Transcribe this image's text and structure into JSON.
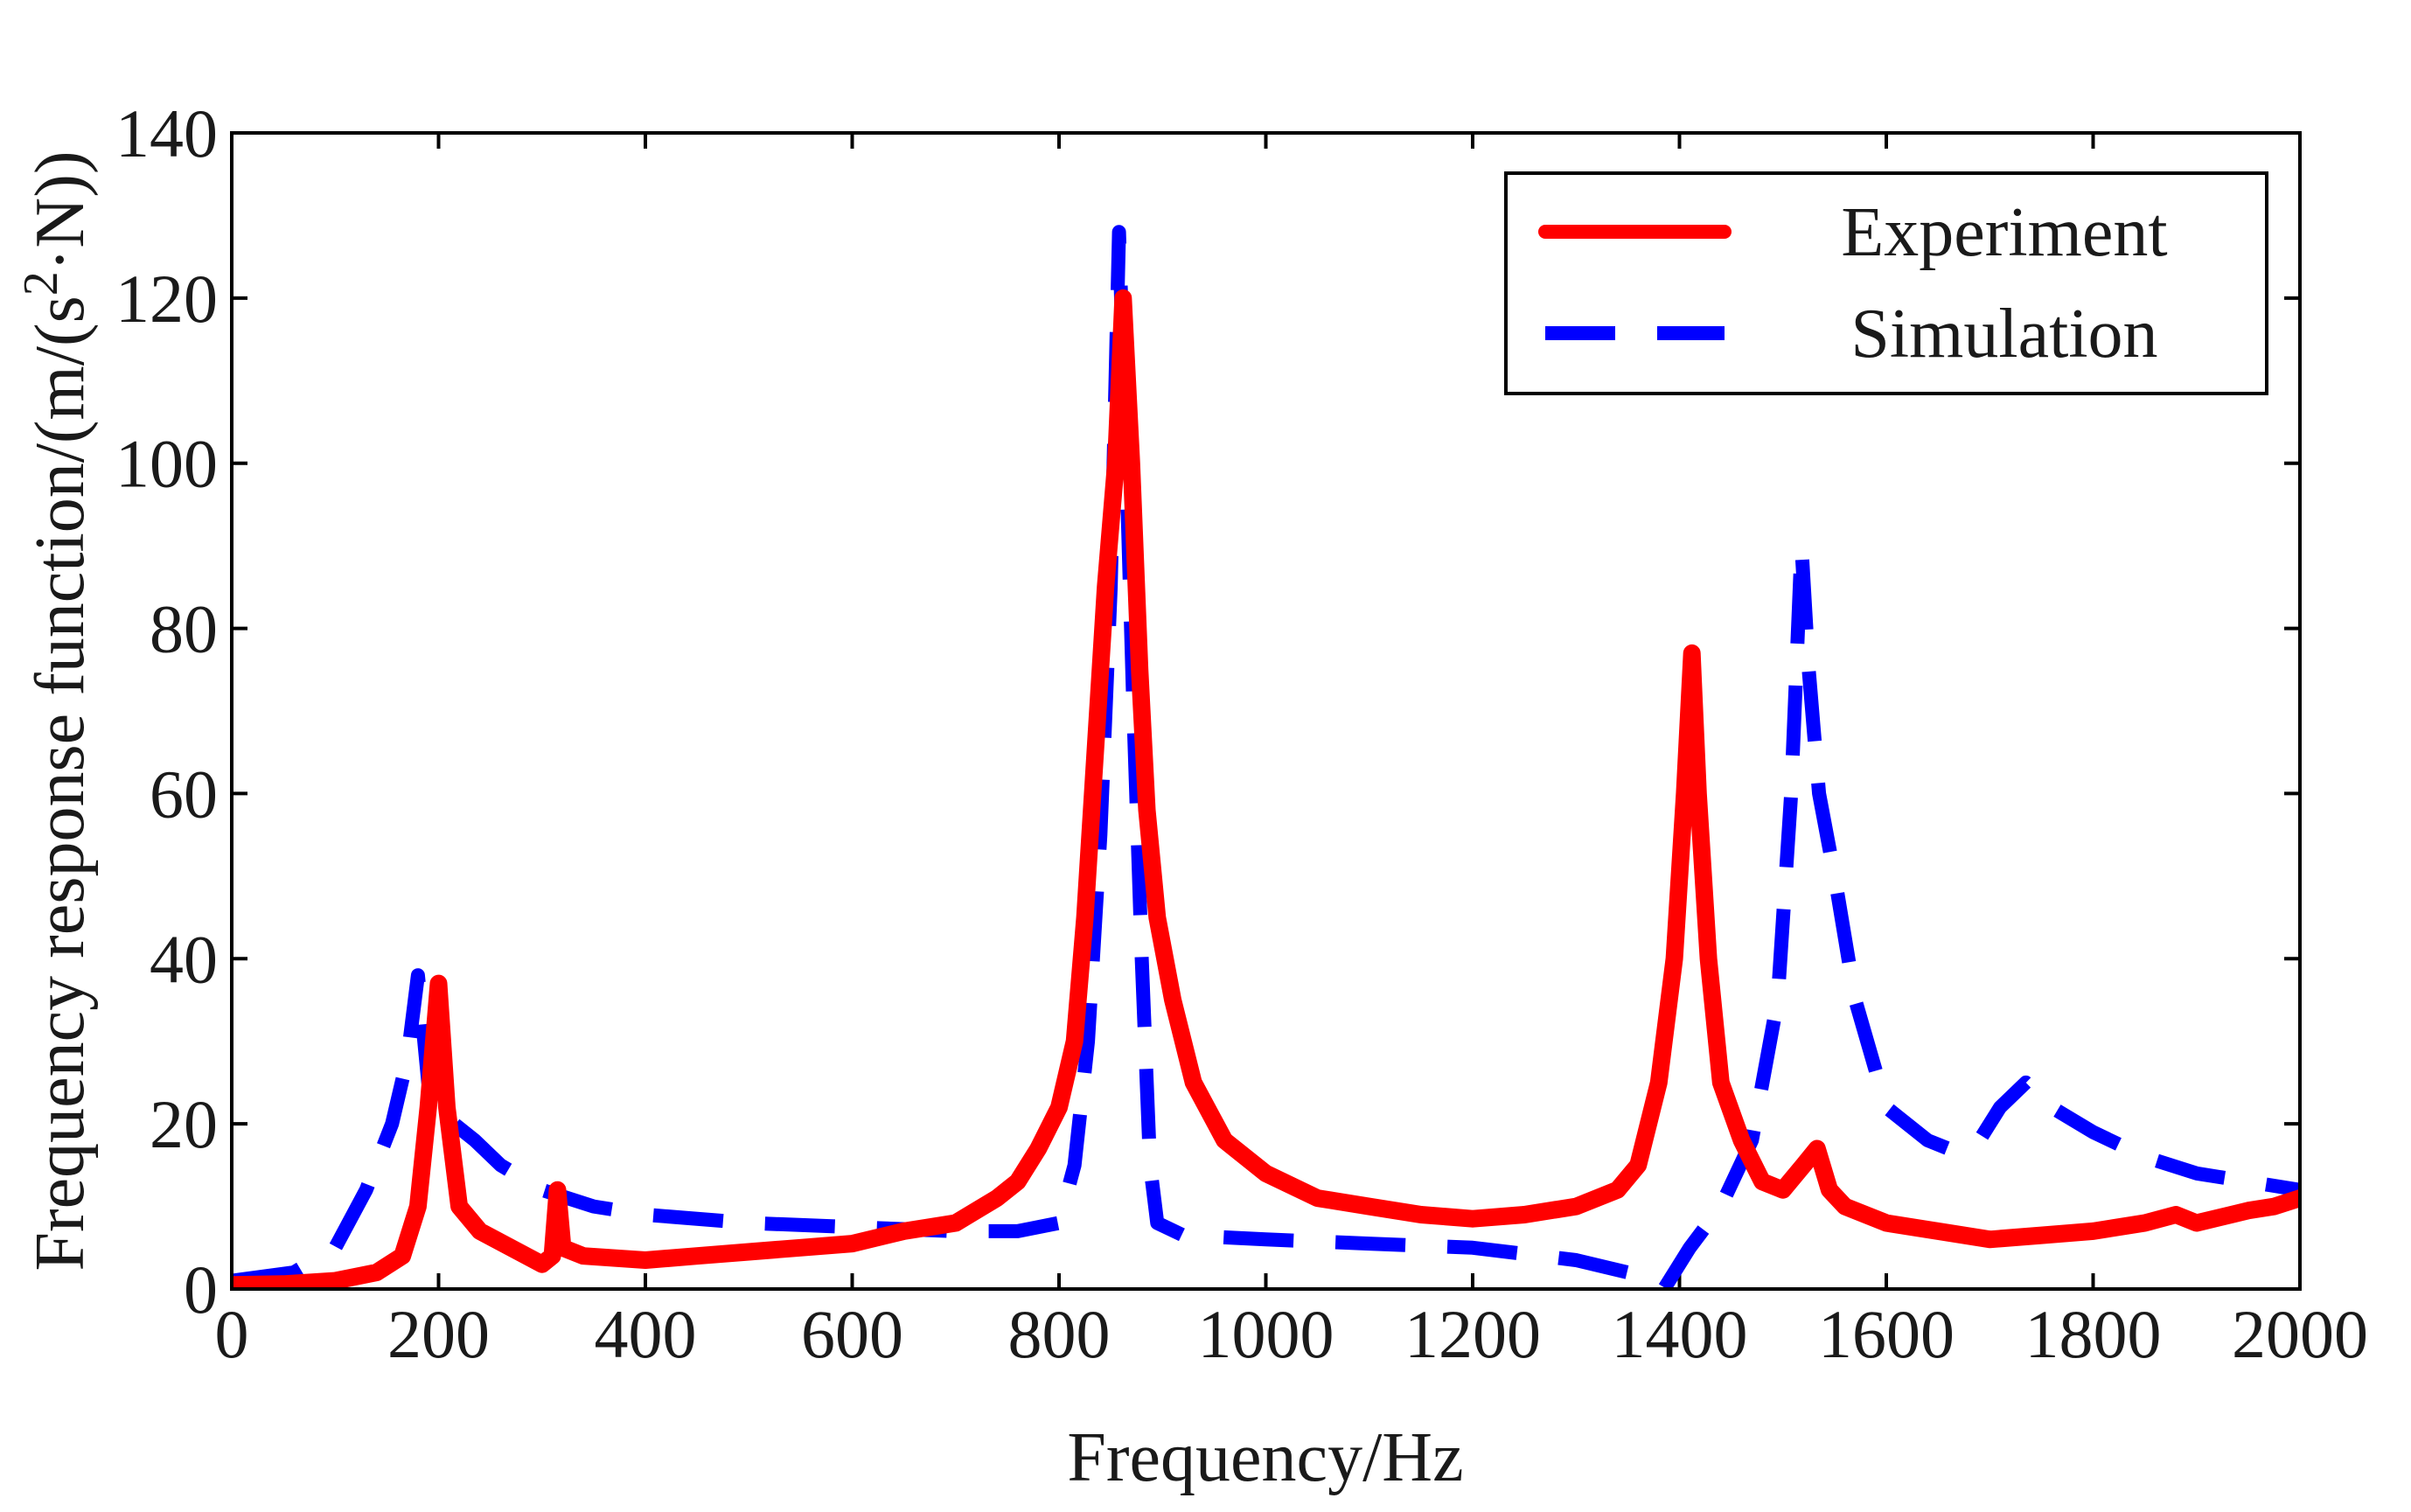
{
  "chart_data": {
    "type": "line",
    "title": "",
    "xlabel": "Frequency/Hz",
    "ylabel": "Frequency response function/(m/(s²·N))",
    "ylabel_parts": {
      "main": "Frequency response function/(m/(s",
      "sup": "2",
      "tail": "·N))"
    },
    "xlim": [
      0,
      2000
    ],
    "ylim": [
      0,
      140
    ],
    "x_ticks": [
      0,
      200,
      400,
      600,
      800,
      1000,
      1200,
      1400,
      1600,
      1800,
      2000
    ],
    "y_ticks": [
      0,
      20,
      40,
      60,
      80,
      100,
      120,
      140
    ],
    "x_tick_labels": [
      "0",
      "200",
      "400",
      "600",
      "800",
      "1000",
      "1200",
      "1400",
      "1600",
      "1800",
      "2000"
    ],
    "y_tick_labels": [
      "0",
      "20",
      "40",
      "60",
      "80",
      "100",
      "120",
      "140"
    ],
    "grid": false,
    "legend_position": "top-right",
    "series": [
      {
        "name": "Experiment",
        "color": "#ff0000",
        "style": "solid",
        "points": [
          [
            0,
            0.5
          ],
          [
            50,
            0.6
          ],
          [
            100,
            1
          ],
          [
            140,
            2
          ],
          [
            165,
            4
          ],
          [
            180,
            10
          ],
          [
            190,
            22
          ],
          [
            200,
            37
          ],
          [
            208,
            22
          ],
          [
            220,
            10
          ],
          [
            240,
            7
          ],
          [
            270,
            5
          ],
          [
            300,
            3
          ],
          [
            310,
            4
          ],
          [
            315,
            12
          ],
          [
            320,
            5
          ],
          [
            340,
            4
          ],
          [
            400,
            3.5
          ],
          [
            450,
            4
          ],
          [
            500,
            4.5
          ],
          [
            550,
            5
          ],
          [
            600,
            5.5
          ],
          [
            650,
            7
          ],
          [
            700,
            8
          ],
          [
            740,
            11
          ],
          [
            760,
            13
          ],
          [
            780,
            17
          ],
          [
            800,
            22
          ],
          [
            815,
            30
          ],
          [
            825,
            45
          ],
          [
            835,
            65
          ],
          [
            845,
            85
          ],
          [
            855,
            100
          ],
          [
            862,
            120
          ],
          [
            870,
            100
          ],
          [
            878,
            75
          ],
          [
            885,
            58
          ],
          [
            895,
            45
          ],
          [
            910,
            35
          ],
          [
            930,
            25
          ],
          [
            960,
            18
          ],
          [
            1000,
            14
          ],
          [
            1050,
            11
          ],
          [
            1100,
            10
          ],
          [
            1150,
            9
          ],
          [
            1200,
            8.5
          ],
          [
            1250,
            9
          ],
          [
            1300,
            10
          ],
          [
            1340,
            12
          ],
          [
            1360,
            15
          ],
          [
            1380,
            25
          ],
          [
            1395,
            40
          ],
          [
            1405,
            60
          ],
          [
            1412,
            77
          ],
          [
            1418,
            60
          ],
          [
            1428,
            40
          ],
          [
            1440,
            25
          ],
          [
            1460,
            18
          ],
          [
            1480,
            13
          ],
          [
            1500,
            12
          ],
          [
            1520,
            15
          ],
          [
            1533,
            17
          ],
          [
            1545,
            12
          ],
          [
            1560,
            10
          ],
          [
            1600,
            8
          ],
          [
            1650,
            7
          ],
          [
            1700,
            6
          ],
          [
            1750,
            6.5
          ],
          [
            1800,
            7
          ],
          [
            1850,
            8
          ],
          [
            1880,
            9
          ],
          [
            1900,
            8
          ],
          [
            1950,
            9.5
          ],
          [
            1975,
            10
          ],
          [
            2000,
            11
          ]
        ]
      },
      {
        "name": "Simulation",
        "color": "#0000ff",
        "style": "dashed",
        "points": [
          [
            0,
            1
          ],
          [
            60,
            2
          ],
          [
            100,
            5
          ],
          [
            130,
            12
          ],
          [
            155,
            20
          ],
          [
            170,
            28
          ],
          [
            180,
            38
          ],
          [
            190,
            25
          ],
          [
            200,
            21
          ],
          [
            215,
            20
          ],
          [
            235,
            18
          ],
          [
            260,
            15
          ],
          [
            300,
            12
          ],
          [
            350,
            10
          ],
          [
            400,
            9
          ],
          [
            500,
            8
          ],
          [
            600,
            7.5
          ],
          [
            700,
            7
          ],
          [
            760,
            7
          ],
          [
            800,
            8
          ],
          [
            815,
            15
          ],
          [
            828,
            30
          ],
          [
            840,
            55
          ],
          [
            850,
            85
          ],
          [
            858,
            128
          ],
          [
            865,
            100
          ],
          [
            872,
            70
          ],
          [
            880,
            40
          ],
          [
            888,
            15
          ],
          [
            895,
            8
          ],
          [
            920,
            6.5
          ],
          [
            1000,
            6
          ],
          [
            1100,
            5.5
          ],
          [
            1200,
            5
          ],
          [
            1300,
            3.5
          ],
          [
            1350,
            2
          ],
          [
            1385,
            0
          ],
          [
            1410,
            5
          ],
          [
            1440,
            10
          ],
          [
            1470,
            18
          ],
          [
            1495,
            35
          ],
          [
            1508,
            60
          ],
          [
            1518,
            90
          ],
          [
            1525,
            75
          ],
          [
            1535,
            60
          ],
          [
            1550,
            50
          ],
          [
            1570,
            35
          ],
          [
            1600,
            22
          ],
          [
            1640,
            18
          ],
          [
            1660,
            17
          ],
          [
            1685,
            17
          ],
          [
            1710,
            22
          ],
          [
            1735,
            25
          ],
          [
            1760,
            22
          ],
          [
            1800,
            19
          ],
          [
            1850,
            16
          ],
          [
            1900,
            14
          ],
          [
            1950,
            13
          ],
          [
            2000,
            12
          ]
        ]
      }
    ]
  }
}
